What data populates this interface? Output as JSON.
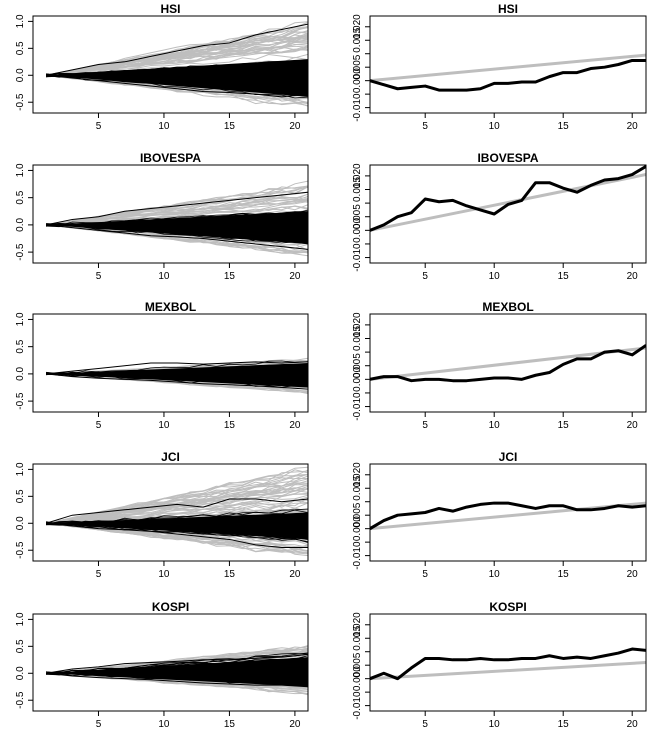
{
  "chart_data": [
    {
      "type": "line",
      "title": "HSI",
      "kind": "paths",
      "xlim": [
        0,
        21
      ],
      "ylim": [
        -0.7,
        1.1
      ],
      "xticks": [
        5,
        10,
        15,
        20
      ],
      "yticks": [
        -0.5,
        0.0,
        0.5,
        1.0
      ],
      "ytick_labels": [
        "-0.5",
        "0.0",
        "0.5",
        "1.0"
      ],
      "series": [
        {
          "role": "simulated-paths-envelope",
          "color": "#bebebe",
          "x": [
            1,
            21
          ],
          "upper": [
            0.0,
            1.0
          ],
          "lower": [
            0.0,
            -0.6
          ]
        },
        {
          "role": "dense-band",
          "color": "#000000",
          "x": [
            1,
            21
          ],
          "upper": [
            0.0,
            0.3
          ],
          "lower": [
            0.0,
            -0.4
          ]
        },
        {
          "role": "highlighted-path",
          "color": "#000000",
          "x": [
            1,
            3,
            5,
            7,
            9,
            11,
            13,
            15,
            17,
            19,
            21
          ],
          "y": [
            0,
            0.1,
            0.2,
            0.25,
            0.35,
            0.45,
            0.55,
            0.6,
            0.75,
            0.85,
            0.95
          ]
        },
        {
          "role": "highlighted-path",
          "color": "#000000",
          "x": [
            1,
            3,
            5,
            7,
            9,
            11,
            13,
            15,
            17,
            19,
            21
          ],
          "y": [
            0,
            -0.05,
            -0.1,
            -0.15,
            -0.2,
            -0.25,
            -0.3,
            -0.32,
            -0.35,
            -0.4,
            -0.35
          ]
        }
      ]
    },
    {
      "type": "line",
      "title": "HSI",
      "kind": "mean",
      "xlim": [
        1,
        21
      ],
      "ylim": [
        -0.012,
        0.024
      ],
      "xticks": [
        5,
        10,
        15,
        20
      ],
      "yticks": [
        -0.01,
        -0.005,
        0.0,
        0.005,
        0.01,
        0.015,
        0.02
      ],
      "ytick_labels": [
        "-0.010",
        "",
        "0.000",
        "0.005",
        "",
        "0.015",
        "0.020"
      ],
      "series": [
        {
          "color": "#bebebe",
          "x": [
            1,
            21
          ],
          "y": [
            0.0,
            0.0095
          ]
        },
        {
          "color": "#000000",
          "x": [
            1,
            2,
            3,
            4,
            5,
            6,
            7,
            8,
            9,
            10,
            11,
            12,
            13,
            14,
            15,
            16,
            17,
            18,
            19,
            20,
            21
          ],
          "y": [
            0.0,
            -0.0015,
            -0.003,
            -0.0025,
            -0.002,
            -0.0035,
            -0.0035,
            -0.0035,
            -0.003,
            -0.001,
            -0.001,
            -0.0005,
            -0.0005,
            0.0015,
            0.003,
            0.003,
            0.0045,
            0.005,
            0.006,
            0.0075,
            0.0075
          ]
        }
      ]
    },
    {
      "type": "line",
      "title": "IBOVESPA",
      "kind": "paths",
      "xlim": [
        0,
        21
      ],
      "ylim": [
        -0.7,
        1.1
      ],
      "xticks": [
        5,
        10,
        15,
        20
      ],
      "yticks": [
        -0.5,
        0.0,
        0.5,
        1.0
      ],
      "ytick_labels": [
        "-0.5",
        "0.0",
        "0.5",
        "1.0"
      ],
      "series": [
        {
          "role": "simulated-paths-envelope",
          "color": "#bebebe",
          "x": [
            1,
            21
          ],
          "upper": [
            0.0,
            0.8
          ],
          "lower": [
            0.0,
            -0.55
          ]
        },
        {
          "role": "dense-band",
          "color": "#000000",
          "x": [
            1,
            21
          ],
          "upper": [
            0.0,
            0.25
          ],
          "lower": [
            0.0,
            -0.35
          ]
        },
        {
          "role": "highlighted-path",
          "color": "#000000",
          "x": [
            1,
            3,
            5,
            7,
            9,
            11,
            13,
            15,
            17,
            19,
            21
          ],
          "y": [
            0,
            0.1,
            0.15,
            0.25,
            0.3,
            0.35,
            0.4,
            0.45,
            0.5,
            0.55,
            0.6
          ]
        },
        {
          "role": "highlighted-path",
          "color": "#000000",
          "x": [
            1,
            3,
            5,
            7,
            9,
            11,
            13,
            15,
            17,
            19,
            21
          ],
          "y": [
            0,
            -0.05,
            -0.1,
            -0.15,
            -0.2,
            -0.22,
            -0.25,
            -0.3,
            -0.35,
            -0.4,
            -0.45
          ]
        }
      ]
    },
    {
      "type": "line",
      "title": "IBOVESPA",
      "kind": "mean",
      "xlim": [
        1,
        21
      ],
      "ylim": [
        -0.012,
        0.024
      ],
      "xticks": [
        5,
        10,
        15,
        20
      ],
      "yticks": [
        -0.01,
        -0.005,
        0.0,
        0.005,
        0.01,
        0.015,
        0.02
      ],
      "ytick_labels": [
        "-0.010",
        "",
        "0.000",
        "0.005",
        "",
        "0.015",
        "0.020"
      ],
      "series": [
        {
          "color": "#bebebe",
          "x": [
            1,
            21
          ],
          "y": [
            0.0,
            0.0205
          ]
        },
        {
          "color": "#000000",
          "x": [
            1,
            2,
            3,
            4,
            5,
            6,
            7,
            8,
            9,
            10,
            11,
            12,
            13,
            14,
            15,
            16,
            17,
            18,
            19,
            20,
            21
          ],
          "y": [
            0.0,
            0.002,
            0.005,
            0.0065,
            0.0115,
            0.0105,
            0.011,
            0.009,
            0.0075,
            0.006,
            0.0095,
            0.011,
            0.0175,
            0.0175,
            0.0155,
            0.014,
            0.0165,
            0.0185,
            0.019,
            0.0205,
            0.0235
          ]
        }
      ]
    },
    {
      "type": "line",
      "title": "MEXBOL",
      "kind": "paths",
      "xlim": [
        0,
        21
      ],
      "ylim": [
        -0.7,
        1.1
      ],
      "xticks": [
        5,
        10,
        15,
        20
      ],
      "yticks": [
        -0.5,
        0.0,
        0.5,
        1.0
      ],
      "ytick_labels": [
        "-0.5",
        "0.0",
        "0.5",
        "1.0"
      ],
      "series": [
        {
          "role": "simulated-paths-envelope",
          "color": "#bebebe",
          "x": [
            1,
            21
          ],
          "upper": [
            0.0,
            0.28
          ],
          "lower": [
            0.0,
            -0.35
          ]
        },
        {
          "role": "dense-band",
          "color": "#000000",
          "x": [
            1,
            21
          ],
          "upper": [
            0.0,
            0.2
          ],
          "lower": [
            0.0,
            -0.25
          ]
        },
        {
          "role": "highlighted-path",
          "color": "#000000",
          "x": [
            1,
            3,
            5,
            7,
            9,
            11,
            13,
            15,
            17,
            19,
            21
          ],
          "y": [
            0,
            0.05,
            0.1,
            0.15,
            0.2,
            0.2,
            0.18,
            0.2,
            0.22,
            0.2,
            0.22
          ]
        },
        {
          "role": "highlighted-path",
          "color": "#000000",
          "x": [
            1,
            3,
            5,
            7,
            9,
            11,
            13,
            15,
            17,
            19,
            21
          ],
          "y": [
            0,
            -0.05,
            -0.08,
            -0.1,
            -0.12,
            -0.15,
            -0.18,
            -0.2,
            -0.22,
            -0.25,
            -0.28
          ]
        }
      ]
    },
    {
      "type": "line",
      "title": "MEXBOL",
      "kind": "mean",
      "xlim": [
        1,
        21
      ],
      "ylim": [
        -0.012,
        0.024
      ],
      "xticks": [
        5,
        10,
        15,
        20
      ],
      "yticks": [
        -0.01,
        -0.005,
        0.0,
        0.005,
        0.01,
        0.015,
        0.02
      ],
      "ytick_labels": [
        "-0.010",
        "",
        "0.000",
        "0.005",
        "",
        "0.015",
        "0.020"
      ],
      "series": [
        {
          "color": "#bebebe",
          "x": [
            1,
            21
          ],
          "y": [
            0.0,
            0.0115
          ]
        },
        {
          "color": "#000000",
          "x": [
            1,
            2,
            3,
            4,
            5,
            6,
            7,
            8,
            9,
            10,
            11,
            12,
            13,
            14,
            15,
            16,
            17,
            18,
            19,
            20,
            21
          ],
          "y": [
            0.0,
            0.001,
            0.001,
            -0.0005,
            0.0,
            0.0,
            -0.0005,
            -0.0005,
            0.0,
            0.0005,
            0.0005,
            0.0,
            0.0015,
            0.0025,
            0.0055,
            0.0075,
            0.0075,
            0.01,
            0.0105,
            0.009,
            0.0125
          ]
        }
      ]
    },
    {
      "type": "line",
      "title": "JCI",
      "kind": "paths",
      "xlim": [
        0,
        21
      ],
      "ylim": [
        -0.7,
        1.1
      ],
      "xticks": [
        5,
        10,
        15,
        20
      ],
      "yticks": [
        -0.5,
        0.0,
        0.5,
        1.0
      ],
      "ytick_labels": [
        "-0.5",
        "0.0",
        "0.5",
        "1.0"
      ],
      "series": [
        {
          "role": "simulated-paths-envelope",
          "color": "#bebebe",
          "x": [
            1,
            21
          ],
          "upper": [
            0.0,
            1.05
          ],
          "lower": [
            0.0,
            -0.6
          ]
        },
        {
          "role": "dense-band",
          "color": "#000000",
          "x": [
            1,
            21
          ],
          "upper": [
            0.0,
            0.2
          ],
          "lower": [
            0.0,
            -0.3
          ]
        },
        {
          "role": "highlighted-path",
          "color": "#000000",
          "x": [
            1,
            3,
            5,
            7,
            9,
            11,
            13,
            15,
            17,
            19,
            21
          ],
          "y": [
            0,
            0.15,
            0.2,
            0.25,
            0.3,
            0.35,
            0.3,
            0.45,
            0.45,
            0.4,
            0.45
          ]
        },
        {
          "role": "highlighted-path",
          "color": "#000000",
          "x": [
            1,
            3,
            5,
            7,
            9,
            11,
            13,
            15,
            17,
            19,
            21
          ],
          "y": [
            0,
            -0.05,
            -0.1,
            -0.12,
            -0.15,
            -0.2,
            -0.25,
            -0.3,
            -0.4,
            -0.45,
            -0.45
          ]
        }
      ]
    },
    {
      "type": "line",
      "title": "JCI",
      "kind": "mean",
      "xlim": [
        1,
        21
      ],
      "ylim": [
        -0.012,
        0.024
      ],
      "xticks": [
        5,
        10,
        15,
        20
      ],
      "yticks": [
        -0.01,
        -0.005,
        0.0,
        0.005,
        0.01,
        0.015,
        0.02
      ],
      "ytick_labels": [
        "-0.010",
        "",
        "0.000",
        "0.005",
        "",
        "0.015",
        "0.020"
      ],
      "series": [
        {
          "color": "#bebebe",
          "x": [
            1,
            21
          ],
          "y": [
            0.0,
            0.0095
          ]
        },
        {
          "color": "#000000",
          "x": [
            1,
            2,
            3,
            4,
            5,
            6,
            7,
            8,
            9,
            10,
            11,
            12,
            13,
            14,
            15,
            16,
            17,
            18,
            19,
            20,
            21
          ],
          "y": [
            0.0,
            0.003,
            0.005,
            0.0055,
            0.006,
            0.0075,
            0.0065,
            0.008,
            0.009,
            0.0095,
            0.0095,
            0.0085,
            0.0075,
            0.0085,
            0.0085,
            0.007,
            0.007,
            0.0075,
            0.0085,
            0.008,
            0.0085
          ]
        }
      ]
    },
    {
      "type": "line",
      "title": "KOSPI",
      "kind": "paths",
      "xlim": [
        0,
        21
      ],
      "ylim": [
        -0.7,
        1.1
      ],
      "xticks": [
        5,
        10,
        15,
        20
      ],
      "yticks": [
        -0.5,
        0.0,
        0.5,
        1.0
      ],
      "ytick_labels": [
        "-0.5",
        "0.0",
        "0.5",
        "1.0"
      ],
      "series": [
        {
          "role": "simulated-paths-envelope",
          "color": "#bebebe",
          "x": [
            1,
            21
          ],
          "upper": [
            0.0,
            0.5
          ],
          "lower": [
            0.0,
            -0.4
          ]
        },
        {
          "role": "dense-band",
          "color": "#000000",
          "x": [
            1,
            21
          ],
          "upper": [
            0.0,
            0.3
          ],
          "lower": [
            0.0,
            -0.25
          ]
        },
        {
          "role": "highlighted-path",
          "color": "#000000",
          "x": [
            1,
            3,
            5,
            7,
            9,
            11,
            13,
            15,
            17,
            19,
            21
          ],
          "y": [
            0,
            0.08,
            0.12,
            0.18,
            0.2,
            0.22,
            0.25,
            0.25,
            0.28,
            0.3,
            0.35
          ]
        },
        {
          "role": "highlighted-path",
          "color": "#000000",
          "x": [
            1,
            3,
            5,
            7,
            9,
            11,
            13,
            15,
            17,
            19,
            21
          ],
          "y": [
            0,
            -0.05,
            -0.08,
            -0.1,
            -0.12,
            -0.15,
            -0.18,
            -0.2,
            -0.22,
            -0.22,
            -0.25
          ]
        }
      ]
    },
    {
      "type": "line",
      "title": "KOSPI",
      "kind": "mean",
      "xlim": [
        1,
        21
      ],
      "ylim": [
        -0.012,
        0.024
      ],
      "xticks": [
        5,
        10,
        15,
        20
      ],
      "yticks": [
        -0.01,
        -0.005,
        0.0,
        0.005,
        0.01,
        0.015,
        0.02
      ],
      "ytick_labels": [
        "-0.010",
        "",
        "0.000",
        "0.005",
        "",
        "0.015",
        "0.020"
      ],
      "series": [
        {
          "color": "#bebebe",
          "x": [
            1,
            21
          ],
          "y": [
            0.0,
            0.006
          ]
        },
        {
          "color": "#000000",
          "x": [
            1,
            2,
            3,
            4,
            5,
            6,
            7,
            8,
            9,
            10,
            11,
            12,
            13,
            14,
            15,
            16,
            17,
            18,
            19,
            20,
            21
          ],
          "y": [
            0.0,
            0.002,
            0.0,
            0.004,
            0.0075,
            0.0075,
            0.007,
            0.007,
            0.0075,
            0.007,
            0.007,
            0.0075,
            0.0075,
            0.0085,
            0.0075,
            0.008,
            0.0075,
            0.0085,
            0.0095,
            0.011,
            0.0105
          ]
        }
      ]
    }
  ]
}
